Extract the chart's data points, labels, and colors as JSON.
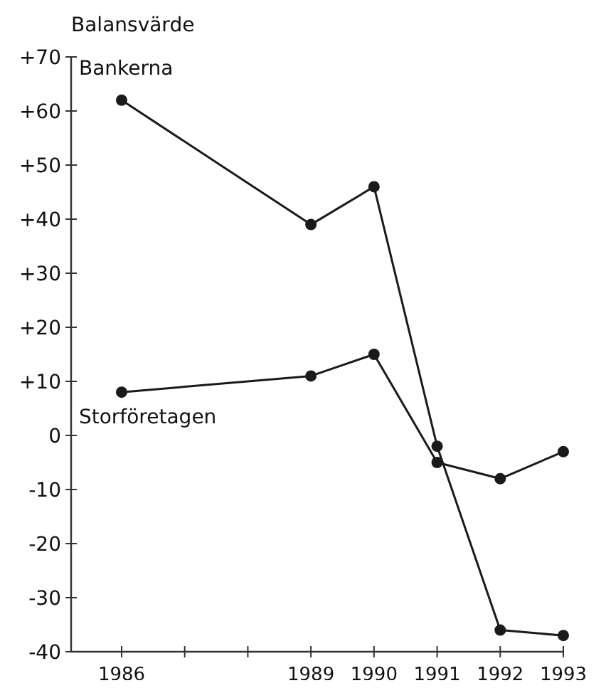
{
  "chart_data": {
    "type": "line",
    "ylabel": "Balansvärde",
    "x": [
      1986,
      1989,
      1990,
      1991,
      1992,
      1993
    ],
    "xlim": [
      1985.2,
      1993
    ],
    "xticks": [
      1986,
      {
        "value": 1987,
        "label": null
      },
      {
        "value": 1988,
        "label": null
      },
      1989,
      1990,
      1991,
      1992,
      1993
    ],
    "ylim": [
      -40,
      70
    ],
    "yticks": [
      {
        "value": 70,
        "label": "+70"
      },
      {
        "value": 60,
        "label": "+60"
      },
      {
        "value": 50,
        "label": "+50"
      },
      {
        "value": 40,
        "label": "+40"
      },
      {
        "value": 30,
        "label": "+30"
      },
      {
        "value": 20,
        "label": "+20"
      },
      {
        "value": 10,
        "label": "+10"
      },
      0,
      -10,
      -20,
      -30,
      -40
    ],
    "marker": "circle",
    "grid": false,
    "series": [
      {
        "name": "Bankerna",
        "color": "#1a1a1a",
        "values": [
          62,
          39,
          46,
          -2,
          -36,
          -37
        ]
      },
      {
        "name": "Storföretagen",
        "color": "#1a1a1a",
        "values": [
          8,
          11,
          15,
          -5,
          -8,
          -3
        ]
      }
    ]
  }
}
